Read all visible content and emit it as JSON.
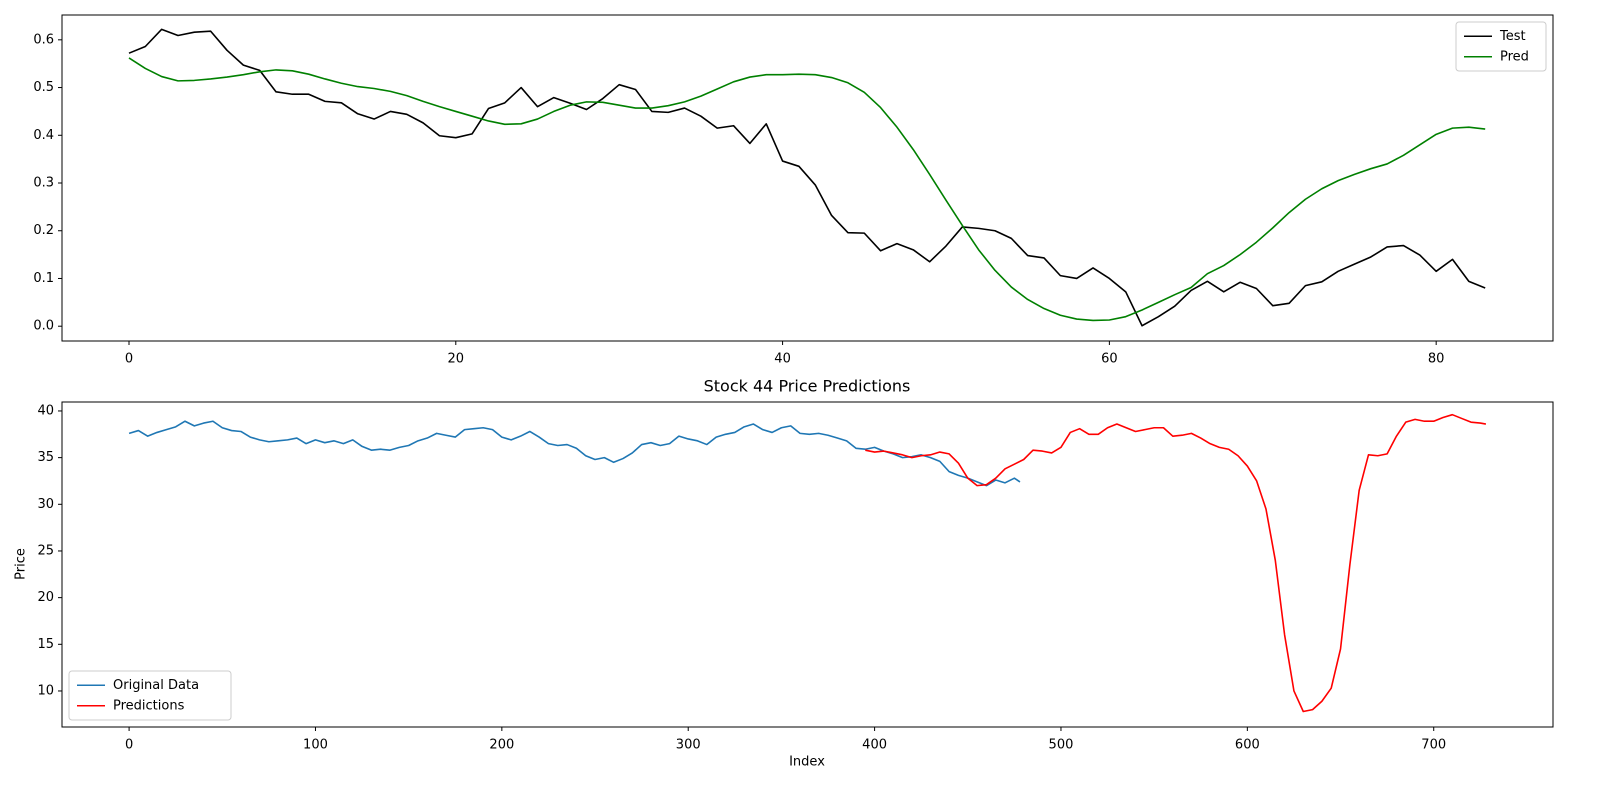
{
  "chart_data": [
    {
      "type": "line",
      "xlim": [
        -4.1,
        87.15
      ],
      "ylim": [
        -0.031,
        0.652
      ],
      "xticks": [
        0,
        20,
        40,
        60,
        80
      ],
      "yticks": [
        {
          "value": 0,
          "label": "0.0"
        },
        0.1,
        0.2,
        0.3,
        0.4,
        0.5,
        0.6
      ],
      "legend": "upper right",
      "series": [
        {
          "name": "Test",
          "color": "#000000",
          "x": [
            0,
            1,
            2,
            3,
            4,
            5,
            6,
            7,
            8,
            9,
            10,
            11,
            12,
            13,
            14,
            15,
            16,
            17,
            18,
            19,
            20,
            21,
            22,
            23,
            24,
            25,
            26,
            27,
            28,
            29,
            30,
            31,
            32,
            33,
            34,
            35,
            36,
            37,
            38,
            39,
            40,
            41,
            42,
            43,
            44,
            45,
            46,
            47,
            48,
            49,
            50,
            51,
            52,
            53,
            54,
            55,
            56,
            57,
            58,
            59,
            60,
            61,
            62,
            63,
            64,
            65,
            66,
            67,
            68,
            69,
            70,
            71,
            72,
            73,
            74,
            75,
            76,
            77,
            78,
            79,
            80,
            81,
            82,
            83
          ],
          "values": [
            0.572,
            0.586,
            0.622,
            0.609,
            0.616,
            0.618,
            0.578,
            0.547,
            0.536,
            0.491,
            0.486,
            0.486,
            0.471,
            0.468,
            0.445,
            0.434,
            0.45,
            0.444,
            0.426,
            0.399,
            0.395,
            0.403,
            0.456,
            0.468,
            0.5,
            0.46,
            0.479,
            0.467,
            0.454,
            0.477,
            0.506,
            0.496,
            0.45,
            0.448,
            0.457,
            0.44,
            0.415,
            0.42,
            0.383,
            0.424,
            0.346,
            0.335,
            0.296,
            0.232,
            0.196,
            0.195,
            0.158,
            0.173,
            0.16,
            0.135,
            0.168,
            0.208,
            0.205,
            0.2,
            0.184,
            0.148,
            0.143,
            0.106,
            0.1,
            0.122,
            0.1,
            0.072,
            0.001,
            0.02,
            0.042,
            0.075,
            0.094,
            0.072,
            0.092,
            0.079,
            0.043,
            0.048,
            0.085,
            0.093,
            0.115,
            0.13,
            0.145,
            0.166,
            0.169,
            0.149,
            0.115,
            0.14,
            0.094,
            0.08
          ]
        },
        {
          "name": "Pred",
          "color": "#008000",
          "x": [
            0,
            1,
            2,
            3,
            4,
            5,
            6,
            7,
            8,
            9,
            10,
            11,
            12,
            13,
            14,
            15,
            16,
            17,
            18,
            19,
            20,
            21,
            22,
            23,
            24,
            25,
            26,
            27,
            28,
            29,
            30,
            31,
            32,
            33,
            34,
            35,
            36,
            37,
            38,
            39,
            40,
            41,
            42,
            43,
            44,
            45,
            46,
            47,
            48,
            49,
            50,
            51,
            52,
            53,
            54,
            55,
            56,
            57,
            58,
            59,
            60,
            61,
            62,
            63,
            64,
            65,
            66,
            67,
            68,
            69,
            70,
            71,
            72,
            73,
            74,
            75,
            76,
            77,
            78,
            79,
            80,
            81,
            82,
            83
          ],
          "values": [
            0.562,
            0.54,
            0.523,
            0.514,
            0.515,
            0.518,
            0.522,
            0.527,
            0.533,
            0.537,
            0.535,
            0.528,
            0.518,
            0.509,
            0.502,
            0.498,
            0.492,
            0.483,
            0.471,
            0.46,
            0.45,
            0.44,
            0.43,
            0.423,
            0.424,
            0.434,
            0.45,
            0.463,
            0.47,
            0.469,
            0.463,
            0.457,
            0.457,
            0.462,
            0.47,
            0.482,
            0.497,
            0.512,
            0.522,
            0.527,
            0.527,
            0.528,
            0.527,
            0.521,
            0.51,
            0.49,
            0.458,
            0.417,
            0.37,
            0.318,
            0.264,
            0.211,
            0.16,
            0.117,
            0.082,
            0.056,
            0.037,
            0.023,
            0.015,
            0.012,
            0.013,
            0.02,
            0.034,
            0.05,
            0.066,
            0.081,
            0.11,
            0.127,
            0.15,
            0.176,
            0.206,
            0.238,
            0.266,
            0.288,
            0.305,
            0.318,
            0.33,
            0.34,
            0.358,
            0.38,
            0.402,
            0.415,
            0.417,
            0.413
          ]
        }
      ]
    },
    {
      "type": "line",
      "title": "Stock 44 Price Predictions",
      "x_label": "Index",
      "y_label": "Price",
      "xlim": [
        -36,
        764
      ],
      "ylim": [
        6.14,
        40.96
      ],
      "xticks": [
        0,
        100,
        200,
        300,
        400,
        500,
        600,
        700
      ],
      "yticks": [
        10,
        15,
        20,
        25,
        30,
        35,
        40
      ],
      "legend": "lower left",
      "series": [
        {
          "name": "Original Data",
          "color": "#1f77b4",
          "x": [
            0,
            5,
            10,
            15,
            20,
            25,
            30,
            35,
            40,
            45,
            50,
            55,
            60,
            65,
            70,
            75,
            80,
            85,
            90,
            95,
            100,
            105,
            110,
            115,
            120,
            125,
            130,
            135,
            140,
            145,
            150,
            155,
            160,
            165,
            170,
            175,
            180,
            185,
            190,
            195,
            200,
            205,
            210,
            215,
            220,
            225,
            230,
            235,
            240,
            245,
            250,
            255,
            260,
            265,
            270,
            275,
            280,
            285,
            290,
            295,
            300,
            305,
            310,
            315,
            320,
            325,
            330,
            335,
            340,
            345,
            350,
            355,
            360,
            365,
            370,
            375,
            380,
            385,
            390,
            395,
            400,
            405,
            410,
            415,
            420,
            425,
            430,
            435,
            440,
            445,
            450,
            455,
            460,
            465,
            470,
            475,
            478
          ],
          "values": [
            37.6,
            37.9,
            37.3,
            37.7,
            38.0,
            38.3,
            38.9,
            38.4,
            38.7,
            38.9,
            38.2,
            37.9,
            37.8,
            37.2,
            36.9,
            36.7,
            36.8,
            36.9,
            37.1,
            36.5,
            36.9,
            36.6,
            36.8,
            36.5,
            36.9,
            36.2,
            35.8,
            35.9,
            35.8,
            36.1,
            36.3,
            36.8,
            37.1,
            37.6,
            37.4,
            37.2,
            38.0,
            38.1,
            38.2,
            38.0,
            37.2,
            36.9,
            37.3,
            37.8,
            37.2,
            36.5,
            36.3,
            36.4,
            36.0,
            35.2,
            34.8,
            35.0,
            34.5,
            34.9,
            35.5,
            36.4,
            36.6,
            36.3,
            36.5,
            37.3,
            37.0,
            36.8,
            36.4,
            37.2,
            37.5,
            37.7,
            38.3,
            38.6,
            38.0,
            37.7,
            38.2,
            38.4,
            37.6,
            37.5,
            37.6,
            37.4,
            37.1,
            36.8,
            36.0,
            35.9,
            36.1,
            35.7,
            35.4,
            35.0,
            35.1,
            35.3,
            35.0,
            34.6,
            33.5,
            33.1,
            32.8,
            32.4,
            32.0,
            32.6,
            32.3,
            32.8,
            32.4
          ]
        },
        {
          "name": "Predictions",
          "color": "#ff0000",
          "x": [
            395,
            400,
            405,
            410,
            415,
            420,
            425,
            430,
            435,
            440,
            445,
            450,
            455,
            460,
            465,
            470,
            475,
            480,
            485,
            490,
            495,
            500,
            505,
            510,
            515,
            520,
            525,
            530,
            535,
            540,
            545,
            550,
            555,
            560,
            565,
            570,
            575,
            580,
            585,
            590,
            595,
            600,
            605,
            610,
            615,
            620,
            625,
            630,
            635,
            640,
            645,
            650,
            655,
            660,
            665,
            670,
            675,
            680,
            685,
            690,
            695,
            700,
            705,
            710,
            715,
            720,
            725,
            728
          ],
          "values": [
            35.8,
            35.6,
            35.7,
            35.5,
            35.3,
            35.0,
            35.2,
            35.3,
            35.6,
            35.4,
            34.4,
            32.8,
            32.0,
            32.1,
            32.8,
            33.8,
            34.3,
            34.8,
            35.8,
            35.7,
            35.5,
            36.1,
            37.7,
            38.1,
            37.5,
            37.5,
            38.2,
            38.6,
            38.2,
            37.8,
            38.0,
            38.2,
            38.2,
            37.3,
            37.4,
            37.6,
            37.1,
            36.5,
            36.1,
            35.9,
            35.2,
            34.1,
            32.5,
            29.5,
            24.0,
            16.0,
            10.0,
            7.8,
            8.0,
            8.9,
            10.3,
            14.5,
            23.5,
            31.5,
            35.3,
            35.2,
            35.4,
            37.3,
            38.8,
            39.1,
            38.9,
            38.9,
            39.3,
            39.6,
            39.2,
            38.8,
            38.7,
            38.6
          ]
        }
      ]
    }
  ]
}
